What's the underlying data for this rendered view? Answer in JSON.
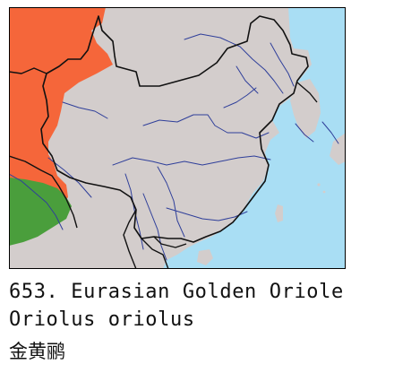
{
  "map": {
    "colors": {
      "sea": "#a9def4",
      "land": "#d3cdcc",
      "range_breeding": "#f5663a",
      "range_resident": "#4a9e3c",
      "border": "#111111",
      "river": "#2f3f9a",
      "frame": "#000000"
    },
    "range_layers": [
      "breeding range",
      "year-round range"
    ]
  },
  "caption": {
    "number_and_common_name": "653. Eurasian Golden Oriole",
    "scientific_name": "Oriolus oriolus",
    "chinese_name": "金黄鹂"
  }
}
